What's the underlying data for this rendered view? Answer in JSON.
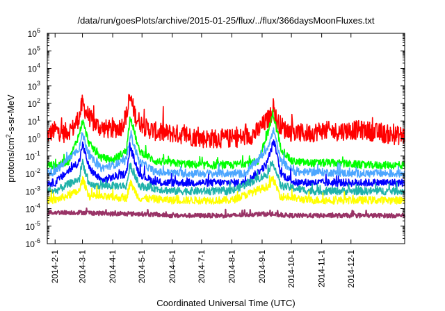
{
  "chart_data": {
    "type": "line",
    "title": "/data/run/goesPlots/archive/2015-01-25/flux/../flux/366daysMoonFluxes.txt",
    "xlabel": "Coordinated Universal Time (UTC)",
    "ylabel": "protons/cm2-s-sr-MeV",
    "ylabel_parts": {
      "base": "protons/cm",
      "sup": "2",
      "rest": "-s-sr-MeV"
    },
    "yscale": "log",
    "ylim": [
      1e-06,
      1000000.0
    ],
    "y_ticks": [
      {
        "base": "10",
        "exp": "-6",
        "value": 1e-06
      },
      {
        "base": "10",
        "exp": "-5",
        "value": 1e-05
      },
      {
        "base": "10",
        "exp": "-4",
        "value": 0.0001
      },
      {
        "base": "10",
        "exp": "-3",
        "value": 0.001
      },
      {
        "base": "10",
        "exp": "-2",
        "value": 0.01
      },
      {
        "base": "10",
        "exp": "-1",
        "value": 0.1
      },
      {
        "base": "10",
        "exp": "0",
        "value": 1
      },
      {
        "base": "10",
        "exp": "1",
        "value": 10
      },
      {
        "base": "10",
        "exp": "2",
        "value": 100
      },
      {
        "base": "10",
        "exp": "3",
        "value": 1000
      },
      {
        "base": "10",
        "exp": "4",
        "value": 10000
      },
      {
        "base": "10",
        "exp": "5",
        "value": 100000
      },
      {
        "base": "10",
        "exp": "6",
        "value": 1000000
      }
    ],
    "xlim": [
      "2014-01-24",
      "2015-01-25"
    ],
    "x_ticks": [
      "2014-2-1",
      "2014-3-1",
      "2014-4-1",
      "2014-5-1",
      "2014-6-1",
      "2014-7-1",
      "2014-8-1",
      "2014-9-1",
      "2014-10-1",
      "2014-11-1",
      "2014-12-1"
    ],
    "x_tick_dates": [
      "2014-02-01",
      "2014-03-01",
      "2014-04-01",
      "2014-05-01",
      "2014-06-01",
      "2014-07-01",
      "2014-08-01",
      "2014-09-01",
      "2014-10-01",
      "2014-11-01",
      "2014-12-01"
    ],
    "grid": false,
    "legend": "none",
    "series": [
      {
        "color": "#ff0000",
        "x": [
          "2014-01-24",
          "2014-02-01",
          "2014-02-10",
          "2014-02-20",
          "2014-02-26",
          "2014-03-01",
          "2014-03-05",
          "2014-03-12",
          "2014-03-20",
          "2014-04-01",
          "2014-04-10",
          "2014-04-16",
          "2014-04-19",
          "2014-04-25",
          "2014-05-05",
          "2014-05-20",
          "2014-06-01",
          "2014-06-15",
          "2014-07-01",
          "2014-07-15",
          "2014-08-01",
          "2014-08-15",
          "2014-08-25",
          "2014-09-01",
          "2014-09-10",
          "2014-09-12",
          "2014-09-16",
          "2014-09-25",
          "2014-10-05",
          "2014-10-20",
          "2014-11-01",
          "2014-11-15",
          "2014-12-01",
          "2014-12-15",
          "2015-01-01",
          "2015-01-15",
          "2015-01-25"
        ],
        "y": [
          1.5,
          3,
          2,
          4,
          20,
          100,
          30,
          8,
          4,
          3,
          5,
          30,
          200,
          15,
          4,
          2,
          2,
          1.5,
          1,
          1,
          1,
          1.2,
          2,
          5,
          20,
          80,
          10,
          3,
          2,
          2,
          3,
          2.5,
          3,
          3,
          2,
          1.5,
          1.5
        ]
      },
      {
        "color": "#00ff00",
        "x": [
          "2014-01-24",
          "2014-02-01",
          "2014-02-15",
          "2014-02-26",
          "2014-03-01",
          "2014-03-08",
          "2014-03-20",
          "2014-04-01",
          "2014-04-15",
          "2014-04-19",
          "2014-04-28",
          "2014-05-15",
          "2014-06-01",
          "2014-07-01",
          "2014-08-01",
          "2014-08-28",
          "2014-09-05",
          "2014-09-10",
          "2014-09-12",
          "2014-09-20",
          "2014-10-01",
          "2014-10-20",
          "2014-11-15",
          "2014-12-15",
          "2015-01-25"
        ],
        "y": [
          0.03,
          0.03,
          0.05,
          2,
          10,
          0.5,
          0.08,
          0.06,
          0.2,
          20,
          0.2,
          0.05,
          0.04,
          0.03,
          0.03,
          0.05,
          1,
          8,
          30,
          0.3,
          0.05,
          0.04,
          0.04,
          0.03,
          0.03
        ]
      },
      {
        "color": "#4da6ff",
        "x": [
          "2014-01-24",
          "2014-02-01",
          "2014-02-26",
          "2014-03-01",
          "2014-03-08",
          "2014-03-20",
          "2014-04-15",
          "2014-04-19",
          "2014-04-28",
          "2014-05-15",
          "2014-06-15",
          "2014-07-15",
          "2014-08-15",
          "2014-09-05",
          "2014-09-10",
          "2014-09-13",
          "2014-09-20",
          "2014-10-05",
          "2014-11-01",
          "2014-12-01",
          "2015-01-25"
        ],
        "y": [
          0.012,
          0.012,
          0.3,
          2,
          0.1,
          0.02,
          0.05,
          2,
          0.05,
          0.012,
          0.01,
          0.01,
          0.01,
          0.2,
          1,
          3,
          0.05,
          0.012,
          0.012,
          0.01,
          0.01
        ]
      },
      {
        "color": "#0000ff",
        "x": [
          "2014-01-24",
          "2014-02-01",
          "2014-02-26",
          "2014-03-01",
          "2014-03-08",
          "2014-03-20",
          "2014-04-15",
          "2014-04-19",
          "2014-04-28",
          "2014-05-15",
          "2014-06-15",
          "2014-07-15",
          "2014-08-15",
          "2014-09-05",
          "2014-09-10",
          "2014-09-13",
          "2014-09-20",
          "2014-10-05",
          "2014-11-01",
          "2014-12-01",
          "2015-01-25"
        ],
        "y": [
          0.003,
          0.003,
          0.05,
          0.5,
          0.02,
          0.004,
          0.01,
          0.3,
          0.01,
          0.003,
          0.003,
          0.003,
          0.003,
          0.03,
          0.2,
          0.8,
          0.01,
          0.003,
          0.003,
          0.003,
          0.003
        ]
      },
      {
        "color": "#20b2aa",
        "x": [
          "2014-01-24",
          "2014-02-01",
          "2014-02-26",
          "2014-03-01",
          "2014-03-08",
          "2014-04-15",
          "2014-04-19",
          "2014-04-28",
          "2014-06-01",
          "2014-08-01",
          "2014-09-08",
          "2014-09-12",
          "2014-09-20",
          "2014-10-20",
          "2014-12-01",
          "2015-01-25"
        ],
        "y": [
          0.001,
          0.001,
          0.005,
          0.05,
          0.002,
          0.002,
          0.03,
          0.002,
          0.001,
          0.001,
          0.01,
          0.05,
          0.002,
          0.001,
          0.001,
          0.001
        ]
      },
      {
        "color": "#ffff00",
        "x": [
          "2014-01-24",
          "2014-02-01",
          "2014-02-26",
          "2014-03-01",
          "2014-03-08",
          "2014-04-15",
          "2014-04-19",
          "2014-04-28",
          "2014-06-01",
          "2014-08-01",
          "2014-09-08",
          "2014-09-12",
          "2014-09-20",
          "2014-10-20",
          "2014-12-01",
          "2015-01-25"
        ],
        "y": [
          0.0003,
          0.0003,
          0.001,
          0.005,
          0.0005,
          0.0004,
          0.003,
          0.0004,
          0.0003,
          0.0003,
          0.002,
          0.005,
          0.0005,
          0.0003,
          0.0003,
          0.0003
        ]
      },
      {
        "color": "#993366",
        "x": [
          "2014-01-24",
          "2014-02-01",
          "2014-03-01",
          "2014-04-01",
          "2014-05-01",
          "2014-06-01",
          "2014-07-01",
          "2014-08-01",
          "2014-09-01",
          "2014-10-01",
          "2014-11-01",
          "2014-12-01",
          "2015-01-25"
        ],
        "y": [
          6e-05,
          6e-05,
          6e-05,
          5e-05,
          5e-05,
          4e-05,
          4e-05,
          4e-05,
          5e-05,
          4e-05,
          4e-05,
          4e-05,
          4e-05
        ]
      }
    ]
  }
}
